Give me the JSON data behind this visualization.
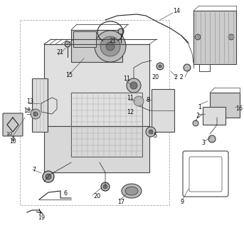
{
  "bg_color": "#ffffff",
  "fig_width": 3.43,
  "fig_height": 3.2,
  "dpi": 100,
  "line_color": "#444444",
  "dark_color": "#222222",
  "gray1": "#bbbbbb",
  "gray2": "#999999",
  "gray3": "#777777",
  "gray4": "#555555",
  "gray_light": "#dddddd",
  "gray_med": "#cccccc",
  "hatch_color": "#888888"
}
